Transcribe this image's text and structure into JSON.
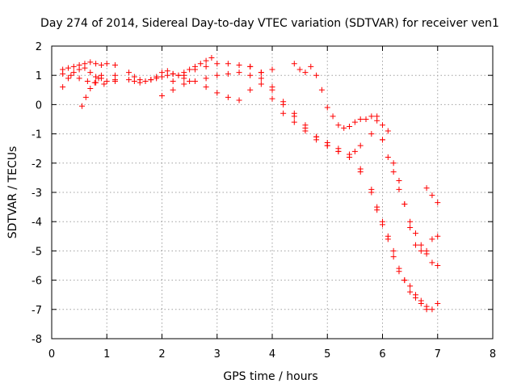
{
  "chart_data": {
    "type": "scatter",
    "title": "Day 274 of 2014, Sidereal Day-to-day VTEC variation (SDTVAR) for receiver ven1",
    "xlabel": "GPS time / hours",
    "ylabel": "SDTVAR / TECUs",
    "xlim": [
      0,
      8
    ],
    "ylim": [
      -8,
      2
    ],
    "xticks": [
      "0",
      "1",
      "2",
      "3",
      "4",
      "5",
      "6",
      "7",
      "8"
    ],
    "yticks": [
      "2",
      "1",
      "0",
      "-1",
      "-2",
      "-3",
      "-4",
      "-5",
      "-6",
      "-7",
      "-8"
    ],
    "grid": true,
    "marker": "+",
    "color": "#ff0000",
    "series": [
      {
        "x": [
          0.2,
          0.3,
          0.4,
          0.5,
          0.6,
          0.7,
          0.8,
          0.9,
          1.0
        ],
        "y": [
          1.2,
          1.25,
          1.3,
          1.35,
          1.4,
          1.45,
          1.4,
          1.35,
          1.4
        ]
      },
      {
        "x": [
          0.2,
          0.3,
          0.4,
          0.5,
          0.6,
          0.7,
          0.8,
          0.9,
          1.0
        ],
        "y": [
          0.6,
          0.9,
          1.1,
          1.2,
          1.25,
          1.1,
          0.95,
          0.9,
          0.8
        ]
      },
      {
        "x": [
          0.55,
          0.62,
          0.7,
          0.78,
          0.85,
          0.9
        ],
        "y": [
          -0.05,
          0.25,
          0.55,
          0.75,
          0.9,
          1.0
        ]
      },
      {
        "x": [
          0.2,
          0.35,
          0.5,
          0.65,
          0.8,
          0.95
        ],
        "y": [
          1.05,
          1.0,
          0.9,
          0.8,
          0.75,
          0.7
        ]
      },
      {
        "x": [
          1.15,
          1.15,
          1.15,
          1.15
        ],
        "y": [
          1.35,
          1.0,
          0.85,
          0.8
        ]
      },
      {
        "x": [
          1.4,
          1.5,
          1.6,
          1.7,
          1.8,
          1.9,
          2.0,
          2.1,
          2.2,
          2.3,
          2.4,
          2.5,
          2.6,
          2.7,
          2.8,
          2.9
        ],
        "y": [
          0.85,
          0.8,
          0.75,
          0.8,
          0.85,
          0.95,
          1.1,
          1.15,
          1.05,
          1.0,
          1.1,
          1.2,
          1.3,
          1.4,
          1.5,
          1.6
        ]
      },
      {
        "x": [
          1.4,
          1.5,
          1.6,
          1.7,
          1.8,
          1.9,
          2.0,
          2.1,
          2.2,
          2.3,
          2.4,
          2.5
        ],
        "y": [
          1.1,
          0.95,
          0.85,
          0.8,
          0.85,
          0.9,
          0.95,
          1.0,
          1.05,
          1.0,
          0.9,
          0.8
        ]
      },
      {
        "x": [
          2.0,
          2.2,
          2.4,
          2.6,
          2.8,
          3.0,
          3.2,
          3.4,
          3.6,
          3.8,
          4.0,
          4.2,
          4.4,
          4.6,
          4.8,
          5.0,
          5.2,
          5.4,
          5.5,
          5.6,
          5.8,
          6.0,
          6.2,
          6.3,
          6.4,
          6.5,
          6.6,
          6.7,
          6.8,
          6.9,
          7.0
        ],
        "y": [
          0.3,
          0.5,
          0.7,
          0.8,
          0.9,
          1.0,
          1.05,
          1.1,
          1.0,
          0.7,
          0.2,
          -0.3,
          -0.6,
          -0.9,
          -1.2,
          -1.4,
          -1.6,
          -1.7,
          -1.6,
          -1.4,
          -1.0,
          -1.2,
          -2.0,
          -2.6,
          -3.4,
          -4.2,
          -4.8,
          -5.0,
          -5.0,
          -4.6,
          -4.5
        ]
      },
      {
        "x": [
          2.2,
          2.4,
          2.6,
          2.8,
          3.0,
          3.2,
          3.4,
          3.6,
          3.8,
          4.0,
          4.2,
          4.4,
          4.6,
          4.8,
          5.0,
          5.2,
          5.4,
          5.6,
          5.8,
          5.9,
          6.0,
          6.1,
          6.2,
          6.3,
          6.4,
          6.5,
          6.6,
          6.7,
          6.8,
          6.9,
          7.0
        ],
        "y": [
          0.8,
          1.0,
          1.2,
          1.3,
          1.4,
          1.4,
          1.35,
          1.3,
          1.1,
          0.5,
          0.0,
          -0.4,
          -0.8,
          -1.1,
          -1.3,
          -1.5,
          -1.8,
          -2.3,
          -3.0,
          -3.6,
          -4.0,
          -4.5,
          -5.2,
          -5.7,
          -6.0,
          -6.2,
          -6.5,
          -6.7,
          -6.9,
          -7.0,
          -6.8
        ]
      },
      {
        "x": [
          2.8,
          3.0,
          3.2,
          3.4,
          3.6,
          3.8,
          4.0
        ],
        "y": [
          0.6,
          0.4,
          0.25,
          0.15,
          0.5,
          0.9,
          1.2
        ]
      },
      {
        "x": [
          3.6,
          3.8,
          4.0,
          4.2,
          4.4,
          4.6,
          4.8,
          5.0,
          5.2,
          5.4,
          5.6,
          5.8,
          5.9,
          6.0,
          6.1,
          6.2,
          6.3,
          6.4,
          6.5,
          6.6,
          6.7,
          6.8
        ],
        "y": [
          1.3,
          1.1,
          0.6,
          0.1,
          -0.3,
          -0.7,
          -1.1,
          -1.4,
          -1.6,
          -1.8,
          -2.2,
          -2.9,
          -3.5,
          -4.1,
          -4.6,
          -5.0,
          -5.6,
          -6.0,
          -6.4,
          -6.6,
          -6.8,
          -7.0
        ]
      },
      {
        "x": [
          4.4,
          4.5,
          4.6,
          4.7,
          4.8,
          4.9,
          5.0,
          5.1,
          5.2,
          5.3,
          5.4,
          5.5,
          5.6,
          5.7,
          5.8,
          5.9,
          6.0,
          6.1,
          6.2,
          6.3,
          6.4,
          6.5,
          6.6,
          6.7,
          6.8,
          6.9,
          7.0
        ],
        "y": [
          1.4,
          1.2,
          1.1,
          1.3,
          1.0,
          0.5,
          -0.1,
          -0.4,
          -0.7,
          -0.8,
          -0.75,
          -0.6,
          -0.5,
          -0.5,
          -0.4,
          -0.55,
          -1.2,
          -1.8,
          -2.3,
          -2.9,
          -3.4,
          -4.0,
          -4.4,
          -4.8,
          -5.1,
          -5.4,
          -5.5
        ]
      },
      {
        "x": [
          5.9,
          6.0,
          6.1
        ],
        "y": [
          -0.4,
          -0.7,
          -0.9
        ]
      },
      {
        "x": [
          6.8,
          6.9,
          7.0
        ],
        "y": [
          -2.85,
          -3.1,
          -3.35
        ]
      }
    ]
  }
}
